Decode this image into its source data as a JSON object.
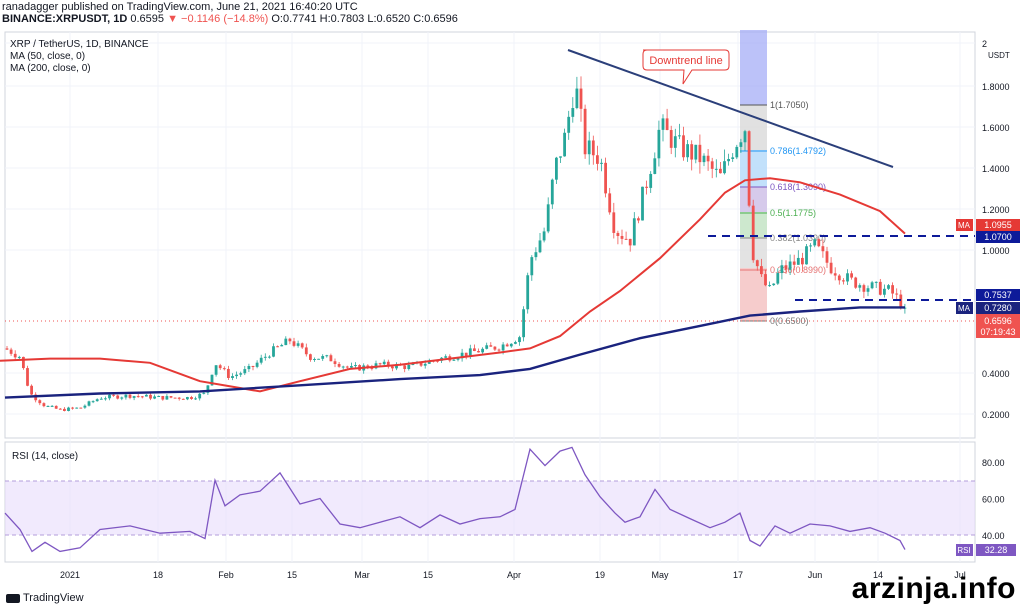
{
  "header": {
    "published": "ranadagger published on TradingView.com, June 21, 2021 16:40:20 UTC",
    "symbol": "BINANCE:XRPUSDT, 1D",
    "price": "0.6595",
    "change": "▼ −0.1146 (−14.8%)",
    "ohlc": "O:0.7741 H:0.7803 L:0.6520 C:0.6596"
  },
  "legend": {
    "title": "XRP / TetherUS, 1D, BINANCE",
    "ma50": "MA (50, close, 0)",
    "ma200": "MA (200, close, 0)"
  },
  "annotation": "Downtrend line",
  "fib": [
    {
      "label": "1(1.7050)",
      "color": "#555555"
    },
    {
      "label": "0.786(1.4792)",
      "color": "#2196f3"
    },
    {
      "label": "0.618(1.3090)",
      "color": "#7e57c2"
    },
    {
      "label": "0.5(1.1775)",
      "color": "#4caf50"
    },
    {
      "label": "0.382(1.0390)",
      "color": "#888888"
    },
    {
      "label": "0.236(0.8990)",
      "color": "#e57373"
    },
    {
      "label": "0(0.6500)",
      "color": "#777777"
    }
  ],
  "price_axis": {
    "unit": "USDT",
    "ticks": [
      "2",
      "1.8000",
      "1.6000",
      "1.4000",
      "1.2000",
      "1.0000",
      "0.4000",
      "0.2000"
    ]
  },
  "price_tags": {
    "ma_label": "MA",
    "ma_top": "1.0955",
    "level_top": "1.0700",
    "level_mid": "0.7537",
    "ma_bottom": "0.7280",
    "last": "0.6596",
    "countdown": "07:19:43"
  },
  "rsi": {
    "label": "RSI (14, close)",
    "ticks": [
      "80.00",
      "60.00",
      "40.00"
    ],
    "tag_label": "RSI",
    "value": "32.28"
  },
  "time_axis": [
    "2021",
    "18",
    "Feb",
    "15",
    "Mar",
    "15",
    "Apr",
    "19",
    "May",
    "17",
    "Jun",
    "14",
    "Jul"
  ],
  "footer": "TradingView",
  "watermark": "arzinja.info",
  "chart_data": {
    "type": "line",
    "title": "XRP / TetherUS, 1D, BINANCE",
    "x_ticks": [
      "2021",
      "18",
      "Feb",
      "15",
      "Mar",
      "15",
      "Apr",
      "19",
      "May",
      "17",
      "Jun",
      "14",
      "Jul"
    ],
    "y_ticks": [
      0.2,
      0.4,
      1.0,
      1.2,
      1.4,
      1.6,
      1.8,
      2.0
    ],
    "series": [
      {
        "name": "MA (50, close, 0)",
        "color": "#e53935",
        "values": [
          [
            0,
            0.46
          ],
          [
            50,
            0.47
          ],
          [
            100,
            0.47
          ],
          [
            150,
            0.45
          ],
          [
            200,
            0.36
          ],
          [
            260,
            0.31
          ],
          [
            300,
            0.36
          ],
          [
            350,
            0.42
          ],
          [
            400,
            0.44
          ],
          [
            450,
            0.47
          ],
          [
            500,
            0.5
          ],
          [
            530,
            0.52
          ],
          [
            560,
            0.58
          ],
          [
            590,
            0.7
          ],
          [
            620,
            0.8
          ],
          [
            660,
            0.96
          ],
          [
            700,
            1.15
          ],
          [
            725,
            1.28
          ],
          [
            745,
            1.34
          ],
          [
            770,
            1.35
          ],
          [
            800,
            1.33
          ],
          [
            840,
            1.27
          ],
          [
            880,
            1.19
          ],
          [
            905,
            1.08
          ]
        ]
      },
      {
        "name": "MA (200, close, 0)",
        "color": "#1a237e",
        "values": [
          [
            5,
            0.28
          ],
          [
            100,
            0.3
          ],
          [
            200,
            0.31
          ],
          [
            300,
            0.34
          ],
          [
            400,
            0.37
          ],
          [
            480,
            0.39
          ],
          [
            530,
            0.42
          ],
          [
            580,
            0.49
          ],
          [
            640,
            0.57
          ],
          [
            700,
            0.63
          ],
          [
            750,
            0.68
          ],
          [
            800,
            0.7
          ],
          [
            860,
            0.72
          ],
          [
            905,
            0.72
          ]
        ]
      },
      {
        "name": "RSI (14, close)",
        "color": "#7e57c2",
        "values": [
          [
            5,
            52
          ],
          [
            20,
            43
          ],
          [
            32,
            31
          ],
          [
            45,
            36
          ],
          [
            60,
            31
          ],
          [
            80,
            33
          ],
          [
            100,
            43
          ],
          [
            130,
            45
          ],
          [
            160,
            41
          ],
          [
            190,
            42
          ],
          [
            205,
            38
          ],
          [
            215,
            70
          ],
          [
            225,
            56
          ],
          [
            240,
            62
          ],
          [
            260,
            64
          ],
          [
            280,
            74
          ],
          [
            300,
            57
          ],
          [
            320,
            60
          ],
          [
            340,
            46
          ],
          [
            360,
            44
          ],
          [
            380,
            47
          ],
          [
            400,
            50
          ],
          [
            420,
            44
          ],
          [
            440,
            51
          ],
          [
            460,
            46
          ],
          [
            480,
            49
          ],
          [
            500,
            50
          ],
          [
            515,
            54
          ],
          [
            530,
            87
          ],
          [
            545,
            78
          ],
          [
            560,
            86
          ],
          [
            572,
            88
          ],
          [
            585,
            73
          ],
          [
            600,
            61
          ],
          [
            615,
            52
          ],
          [
            625,
            47
          ],
          [
            640,
            50
          ],
          [
            655,
            65
          ],
          [
            670,
            54
          ],
          [
            690,
            49
          ],
          [
            710,
            44
          ],
          [
            725,
            47
          ],
          [
            740,
            52
          ],
          [
            750,
            37
          ],
          [
            760,
            34
          ],
          [
            775,
            45
          ],
          [
            790,
            41
          ],
          [
            810,
            46
          ],
          [
            830,
            45
          ],
          [
            850,
            42
          ],
          [
            870,
            44
          ],
          [
            885,
            41
          ],
          [
            900,
            37
          ],
          [
            905,
            32
          ]
        ]
      }
    ],
    "annotations": [
      "Downtrend line"
    ],
    "horizontal_levels": [
      1.07,
      0.7537
    ],
    "last_price": 0.6596
  }
}
